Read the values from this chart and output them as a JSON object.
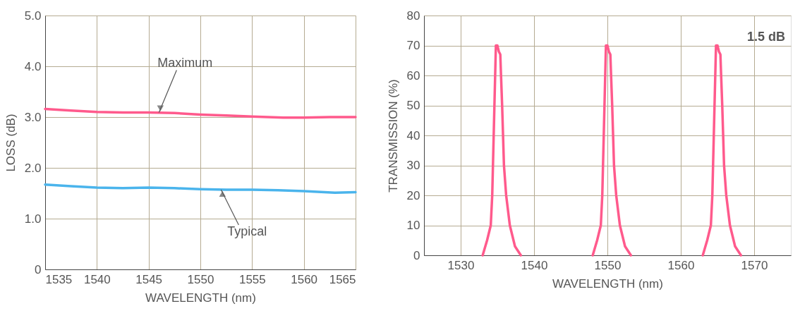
{
  "chart_data": [
    {
      "type": "line",
      "xlabel": "WAVELENGTH (nm)",
      "ylabel": "LOSS (dB)",
      "xlim": [
        1535,
        1565
      ],
      "xticks": [
        1535,
        1540,
        1545,
        1550,
        1555,
        1560,
        1565
      ],
      "ylim": [
        0,
        5
      ],
      "yticks": [
        0,
        {
          "value": 1,
          "label": "1.0"
        },
        {
          "value": 2,
          "label": "2.0"
        },
        {
          "value": 3,
          "label": "3.0"
        },
        {
          "value": 4,
          "label": "4.0"
        },
        {
          "value": 5,
          "label": "5.0"
        }
      ],
      "grid": true,
      "series": [
        {
          "color": "#ff5a8c",
          "x": [
            1535,
            1537.5,
            1540,
            1542.5,
            1545,
            1547.5,
            1550,
            1552.5,
            1555,
            1558,
            1560,
            1562.5,
            1565
          ],
          "values": [
            3.16,
            3.13,
            3.1,
            3.09,
            3.09,
            3.08,
            3.05,
            3.03,
            3.01,
            2.99,
            2.99,
            3.0,
            3.0
          ]
        },
        {
          "color": "#4ab4ec",
          "x": [
            1535,
            1537.5,
            1540,
            1542.5,
            1545,
            1547.5,
            1550,
            1552.5,
            1555,
            1557.5,
            1560,
            1563,
            1565
          ],
          "values": [
            1.67,
            1.64,
            1.61,
            1.6,
            1.61,
            1.6,
            1.58,
            1.57,
            1.57,
            1.56,
            1.54,
            1.51,
            1.52
          ]
        }
      ],
      "annotations": [
        {
          "text": "Maximum",
          "x": 1546,
          "y": 3.09
        },
        {
          "text": "Typical",
          "x": 1552,
          "y": 1.57
        }
      ]
    },
    {
      "type": "line",
      "xlabel": "WAVELENGTH (nm)",
      "ylabel": "TRANSMISSION (%)",
      "xlim": [
        1525,
        1575
      ],
      "xticks": [
        1530,
        1540,
        1550,
        1560,
        1570
      ],
      "ylim": [
        0,
        80
      ],
      "yticks": [
        0,
        10,
        20,
        30,
        40,
        50,
        60,
        70,
        80
      ],
      "grid": true,
      "series": [
        {
          "color": "#ff5a8c",
          "x": [
            1533.0,
            1533.6,
            1534.1,
            1534.3,
            1534.6,
            1534.8,
            1535.0,
            1535.2,
            1535.4,
            1535.5,
            1535.65,
            1535.9,
            1536.2,
            1536.7,
            1537.4,
            1538.2
          ],
          "values": [
            0,
            5,
            10,
            20,
            50,
            70,
            70,
            68,
            67,
            60,
            50,
            30,
            20,
            10,
            3,
            0
          ]
        },
        {
          "color": "#ff5a8c",
          "x": [
            1548.0,
            1548.6,
            1549.1,
            1549.3,
            1549.6,
            1549.8,
            1550.0,
            1550.2,
            1550.4,
            1550.5,
            1550.65,
            1550.9,
            1551.2,
            1551.7,
            1552.4,
            1553.2
          ],
          "values": [
            0,
            5,
            10,
            20,
            50,
            70,
            70,
            68,
            67,
            60,
            50,
            30,
            20,
            10,
            3,
            0
          ]
        },
        {
          "color": "#ff5a8c",
          "x": [
            1563.0,
            1563.6,
            1564.1,
            1564.3,
            1564.6,
            1564.8,
            1565.0,
            1565.2,
            1565.4,
            1565.5,
            1565.65,
            1565.9,
            1566.2,
            1566.7,
            1567.4,
            1568.2
          ],
          "values": [
            0,
            5,
            10,
            20,
            50,
            70,
            70,
            68,
            67,
            60,
            50,
            30,
            20,
            10,
            3,
            0
          ]
        }
      ],
      "annotations": [
        "1.5 dB"
      ]
    }
  ]
}
